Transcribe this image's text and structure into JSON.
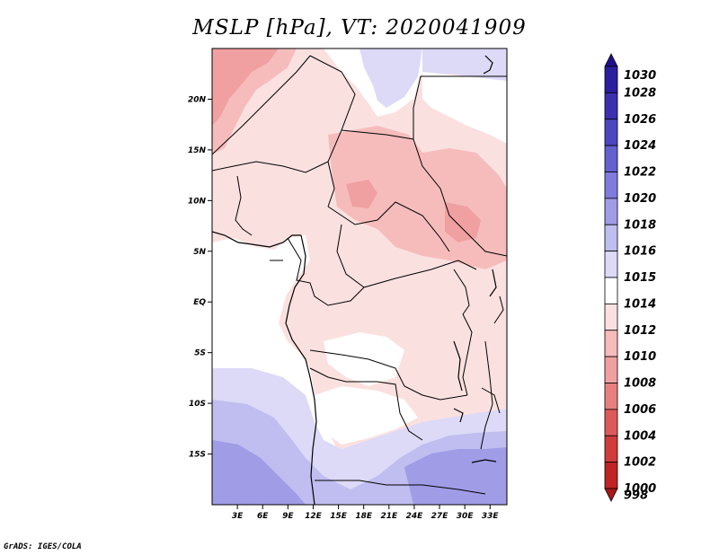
{
  "title": "MSLP [hPa], VT: 2020041909",
  "footer": "GrADS: IGES/COLA",
  "map": {
    "lat_range": [
      -20,
      25
    ],
    "lon_range": [
      0,
      35
    ],
    "lat_ticks": [
      {
        "value": 20,
        "label": "20N"
      },
      {
        "value": 15,
        "label": "15N"
      },
      {
        "value": 10,
        "label": "10N"
      },
      {
        "value": 5,
        "label": "5N"
      },
      {
        "value": 0,
        "label": "EQ"
      },
      {
        "value": -5,
        "label": "5S"
      },
      {
        "value": -10,
        "label": "10S"
      },
      {
        "value": -15,
        "label": "15S"
      }
    ],
    "lon_ticks": [
      {
        "value": 3,
        "label": "3E"
      },
      {
        "value": 6,
        "label": "6E"
      },
      {
        "value": 9,
        "label": "9E"
      },
      {
        "value": 12,
        "label": "12E"
      },
      {
        "value": 15,
        "label": "15E"
      },
      {
        "value": 18,
        "label": "18E"
      },
      {
        "value": 21,
        "label": "21E"
      },
      {
        "value": 24,
        "label": "24E"
      },
      {
        "value": 27,
        "label": "27E"
      },
      {
        "value": 30,
        "label": "30E"
      },
      {
        "value": 33,
        "label": "33E"
      }
    ]
  },
  "legend": {
    "levels": [
      {
        "label": "1030",
        "color": "#1e0f8c"
      },
      {
        "label": "1028",
        "color": "#2a1f9e"
      },
      {
        "label": "1026",
        "color": "#3a30b0"
      },
      {
        "label": "1024",
        "color": "#4c46c0"
      },
      {
        "label": "1022",
        "color": "#6460cf"
      },
      {
        "label": "1020",
        "color": "#807cdc"
      },
      {
        "label": "1018",
        "color": "#a09ce6"
      },
      {
        "label": "1016",
        "color": "#c0bdf0"
      },
      {
        "label": "1015",
        "color": "#dcdaf7"
      },
      {
        "label": "1014",
        "color": "#ffffff"
      },
      {
        "label": "1012",
        "color": "#fbe0e0"
      },
      {
        "label": "1010",
        "color": "#f6bcbc"
      },
      {
        "label": "1008",
        "color": "#f0a0a0"
      },
      {
        "label": "1006",
        "color": "#e88080"
      },
      {
        "label": "1004",
        "color": "#de5a5a"
      },
      {
        "label": "1002",
        "color": "#d03c3c"
      },
      {
        "label": "1000",
        "color": "#bf2424"
      },
      {
        "label": "998",
        "color": "#a81818"
      }
    ]
  },
  "chart_data": {
    "type": "heatmap",
    "title": "MSLP [hPa], VT: 2020041909",
    "variable": "MSLP",
    "units": "hPa",
    "valid_time": "2020041909",
    "lat_range": [
      -20,
      25
    ],
    "lon_range": [
      0,
      35
    ],
    "contour_levels": [
      998,
      1000,
      1002,
      1004,
      1006,
      1008,
      1010,
      1012,
      1014,
      1015,
      1016,
      1018,
      1020,
      1022,
      1024,
      1026,
      1028,
      1030
    ]
  }
}
